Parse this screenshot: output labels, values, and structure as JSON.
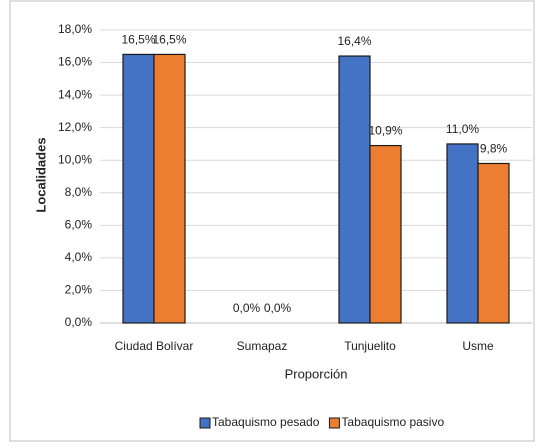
{
  "chart_data": {
    "type": "bar",
    "x_label": "Proporción",
    "y_label": "Localidades",
    "categories": [
      "Ciudad Bolívar",
      "Sumapaz",
      "Tunjuelito",
      "Usme"
    ],
    "series": [
      {
        "name": "Tabaquismo pesado",
        "color": "#4472c4",
        "values": [
          16.5,
          0,
          16.4,
          11.0
        ],
        "value_labels": [
          "16,5%",
          "0,0%",
          "16,4%",
          "11,0%"
        ]
      },
      {
        "name": "Tabaquismo pasivo",
        "color": "#ed7d31",
        "values": [
          16.5,
          0,
          10.9,
          9.8
        ],
        "value_labels": [
          "16,5%",
          "0,0%",
          "10,9%",
          "9,8%"
        ]
      }
    ],
    "ylim": [
      0,
      18
    ],
    "yticks": [
      {
        "value": 0,
        "label": "0,0%"
      },
      {
        "value": 2,
        "label": "2,0%"
      },
      {
        "value": 4,
        "label": "4,0%"
      },
      {
        "value": 6,
        "label": "6,0%"
      },
      {
        "value": 8,
        "label": "8,0%"
      },
      {
        "value": 10,
        "label": "10,0%"
      },
      {
        "value": 12,
        "label": "12,0%"
      },
      {
        "value": 14,
        "label": "14,0%"
      },
      {
        "value": 16,
        "label": "16,0%"
      },
      {
        "value": 18,
        "label": "18,0%"
      }
    ],
    "grid": true,
    "legend": "bottom"
  }
}
